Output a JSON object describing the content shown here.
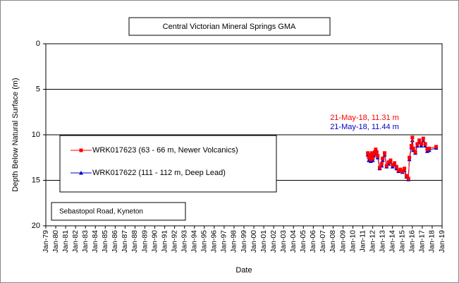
{
  "chart_data": {
    "type": "line",
    "title": "Central Victorian Mineral Springs GMA",
    "subtitle": "Sebastopol Road, Kyneton",
    "xlabel": "Date",
    "ylabel": "Depth Below Natural Surface (m)",
    "inverted_y": true,
    "grid": true,
    "ylim": [
      0,
      20
    ],
    "yticks": [
      0,
      5,
      10,
      15,
      20
    ],
    "xlim": [
      1979,
      2019
    ],
    "xticks": [
      {
        "value": 1979,
        "label": "Jan-79"
      },
      {
        "value": 1980,
        "label": "Jan-80"
      },
      {
        "value": 1981,
        "label": "Jan-81"
      },
      {
        "value": 1982,
        "label": "Jan-82"
      },
      {
        "value": 1983,
        "label": "Jan-83"
      },
      {
        "value": 1984,
        "label": "Jan-84"
      },
      {
        "value": 1985,
        "label": "Jan-85"
      },
      {
        "value": 1986,
        "label": "Jan-86"
      },
      {
        "value": 1987,
        "label": "Jan-87"
      },
      {
        "value": 1988,
        "label": "Jan-88"
      },
      {
        "value": 1989,
        "label": "Jan-89"
      },
      {
        "value": 1990,
        "label": "Jan-90"
      },
      {
        "value": 1991,
        "label": "Jan-91"
      },
      {
        "value": 1992,
        "label": "Jan-92"
      },
      {
        "value": 1993,
        "label": "Jan-93"
      },
      {
        "value": 1994,
        "label": "Jan-94"
      },
      {
        "value": 1995,
        "label": "Jan-95"
      },
      {
        "value": 1996,
        "label": "Jan-96"
      },
      {
        "value": 1997,
        "label": "Jan-97"
      },
      {
        "value": 1998,
        "label": "Jan-98"
      },
      {
        "value": 1999,
        "label": "Jan-99"
      },
      {
        "value": 2000,
        "label": "Jan-00"
      },
      {
        "value": 2001,
        "label": "Jan-01"
      },
      {
        "value": 2002,
        "label": "Jan-02"
      },
      {
        "value": 2003,
        "label": "Jan-03"
      },
      {
        "value": 2004,
        "label": "Jan-04"
      },
      {
        "value": 2005,
        "label": "Jan-05"
      },
      {
        "value": 2006,
        "label": "Jan-06"
      },
      {
        "value": 2007,
        "label": "Jan-07"
      },
      {
        "value": 2008,
        "label": "Jan-08"
      },
      {
        "value": 2009,
        "label": "Jan-09"
      },
      {
        "value": 2010,
        "label": "Jan-10"
      },
      {
        "value": 2011,
        "label": "Jan-11"
      },
      {
        "value": 2012,
        "label": "Jan-12"
      },
      {
        "value": 2013,
        "label": "Jan-13"
      },
      {
        "value": 2014,
        "label": "Jan-14"
      },
      {
        "value": 2015,
        "label": "Jan-15"
      },
      {
        "value": 2016,
        "label": "Jan-16"
      },
      {
        "value": 2017,
        "label": "Jan-17"
      },
      {
        "value": 2018,
        "label": "Jan-18"
      },
      {
        "value": 2019,
        "label": "Jan-19"
      }
    ],
    "x": [
      2011.5,
      2011.6,
      2011.7,
      2011.8,
      2011.9,
      2012.0,
      2012.1,
      2012.2,
      2012.3,
      2012.4,
      2012.5,
      2012.7,
      2012.9,
      2013.0,
      2013.2,
      2013.4,
      2013.6,
      2013.8,
      2014.0,
      2014.2,
      2014.4,
      2014.6,
      2014.8,
      2015.0,
      2015.2,
      2015.4,
      2015.6,
      2015.7,
      2015.9,
      2016.0,
      2016.1,
      2016.3,
      2016.5,
      2016.7,
      2016.9,
      2017.1,
      2017.3,
      2017.5,
      2017.7,
      2018.4
    ],
    "series": [
      {
        "name": "WRK017623 (63 - 66 m, Newer Volcanics)",
        "color": "#ff0000",
        "marker": "square",
        "values": [
          12.0,
          12.5,
          12.2,
          12.7,
          12.0,
          12.6,
          12.1,
          11.9,
          11.6,
          11.9,
          12.3,
          13.6,
          13.2,
          12.6,
          12.0,
          13.4,
          13.0,
          12.8,
          13.3,
          13.1,
          13.5,
          13.9,
          13.8,
          14.0,
          13.7,
          14.5,
          14.8,
          12.5,
          11.2,
          10.3,
          11.5,
          11.9,
          11.0,
          10.6,
          11.0,
          10.4,
          11.0,
          11.6,
          11.5,
          11.31
        ]
      },
      {
        "name": "WRK017622 (111 - 112 m, Deep Lead)",
        "color": "#0000cc",
        "marker": "triangle",
        "values": [
          12.2,
          12.8,
          12.4,
          12.9,
          12.2,
          12.8,
          12.3,
          12.1,
          11.8,
          12.1,
          12.5,
          13.7,
          13.4,
          12.8,
          12.2,
          13.5,
          13.2,
          13.0,
          13.5,
          13.3,
          13.7,
          14.0,
          13.9,
          14.1,
          13.9,
          14.6,
          14.9,
          12.7,
          11.4,
          10.6,
          11.7,
          12.0,
          11.2,
          10.8,
          11.2,
          10.6,
          11.2,
          11.8,
          11.7,
          11.44
        ]
      }
    ],
    "annotations": [
      {
        "text": "21-May-18, 11.31 m",
        "color": "#ff0000"
      },
      {
        "text": "21-May-18, 11.44 m",
        "color": "#0000cc"
      }
    ]
  }
}
